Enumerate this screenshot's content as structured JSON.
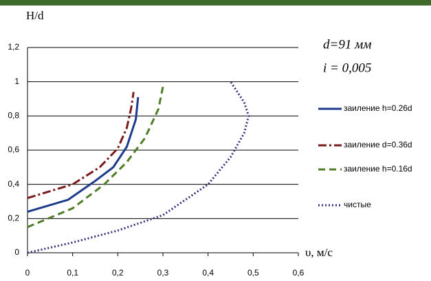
{
  "chart_data": {
    "type": "line",
    "y_label": "H/d",
    "x_label": "υ, м/с",
    "annotations": [
      "d=91 мм",
      "i = 0,005"
    ],
    "xlim": [
      0,
      0.6
    ],
    "ylim": [
      0,
      1.2
    ],
    "xticks": [
      0,
      {
        "value": 0.1,
        "label": "0,1"
      },
      {
        "value": 0.2,
        "label": "0,2"
      },
      {
        "value": 0.3,
        "label": "0,3"
      },
      {
        "value": 0.4,
        "label": "0,4"
      },
      {
        "value": 0.5,
        "label": "0,5"
      },
      {
        "value": 0.6,
        "label": "0,6"
      }
    ],
    "yticks": [
      0,
      {
        "value": 0.2,
        "label": "0,2"
      },
      {
        "value": 0.4,
        "label": "0,4"
      },
      {
        "value": 0.6,
        "label": "0,6"
      },
      {
        "value": 0.8,
        "label": "0,8"
      },
      1,
      {
        "value": 1.2,
        "label": "1,2"
      }
    ],
    "grid": true,
    "series": [
      {
        "name": "заиление h=0.26d",
        "color": "#1c3a8c",
        "dash": "",
        "x": [
          0,
          0.09,
          0.15,
          0.19,
          0.22,
          0.24,
          0.245
        ],
        "values": [
          0.24,
          0.31,
          0.42,
          0.5,
          0.62,
          0.78,
          0.91
        ]
      },
      {
        "name": "заиление d=0.36d",
        "color": "#7a1a1a",
        "dash": "12 4 3 4",
        "x": [
          0,
          0.1,
          0.16,
          0.2,
          0.22,
          0.23,
          0.235
        ],
        "values": [
          0.32,
          0.4,
          0.5,
          0.61,
          0.73,
          0.85,
          0.94
        ]
      },
      {
        "name": "заиление h=0.16d",
        "color": "#4f7d25",
        "dash": "10 6",
        "x": [
          0,
          0.1,
          0.17,
          0.22,
          0.26,
          0.29,
          0.3
        ],
        "values": [
          0.15,
          0.26,
          0.4,
          0.53,
          0.67,
          0.84,
          0.97
        ]
      },
      {
        "name": "чистые",
        "color": "#3b2f7a",
        "dash": "2 3",
        "x": [
          0,
          0.1,
          0.2,
          0.3,
          0.4,
          0.45,
          0.48,
          0.49,
          0.48,
          0.45
        ],
        "values": [
          0,
          0.06,
          0.13,
          0.22,
          0.4,
          0.56,
          0.7,
          0.8,
          0.88,
          1.0
        ]
      }
    ]
  }
}
